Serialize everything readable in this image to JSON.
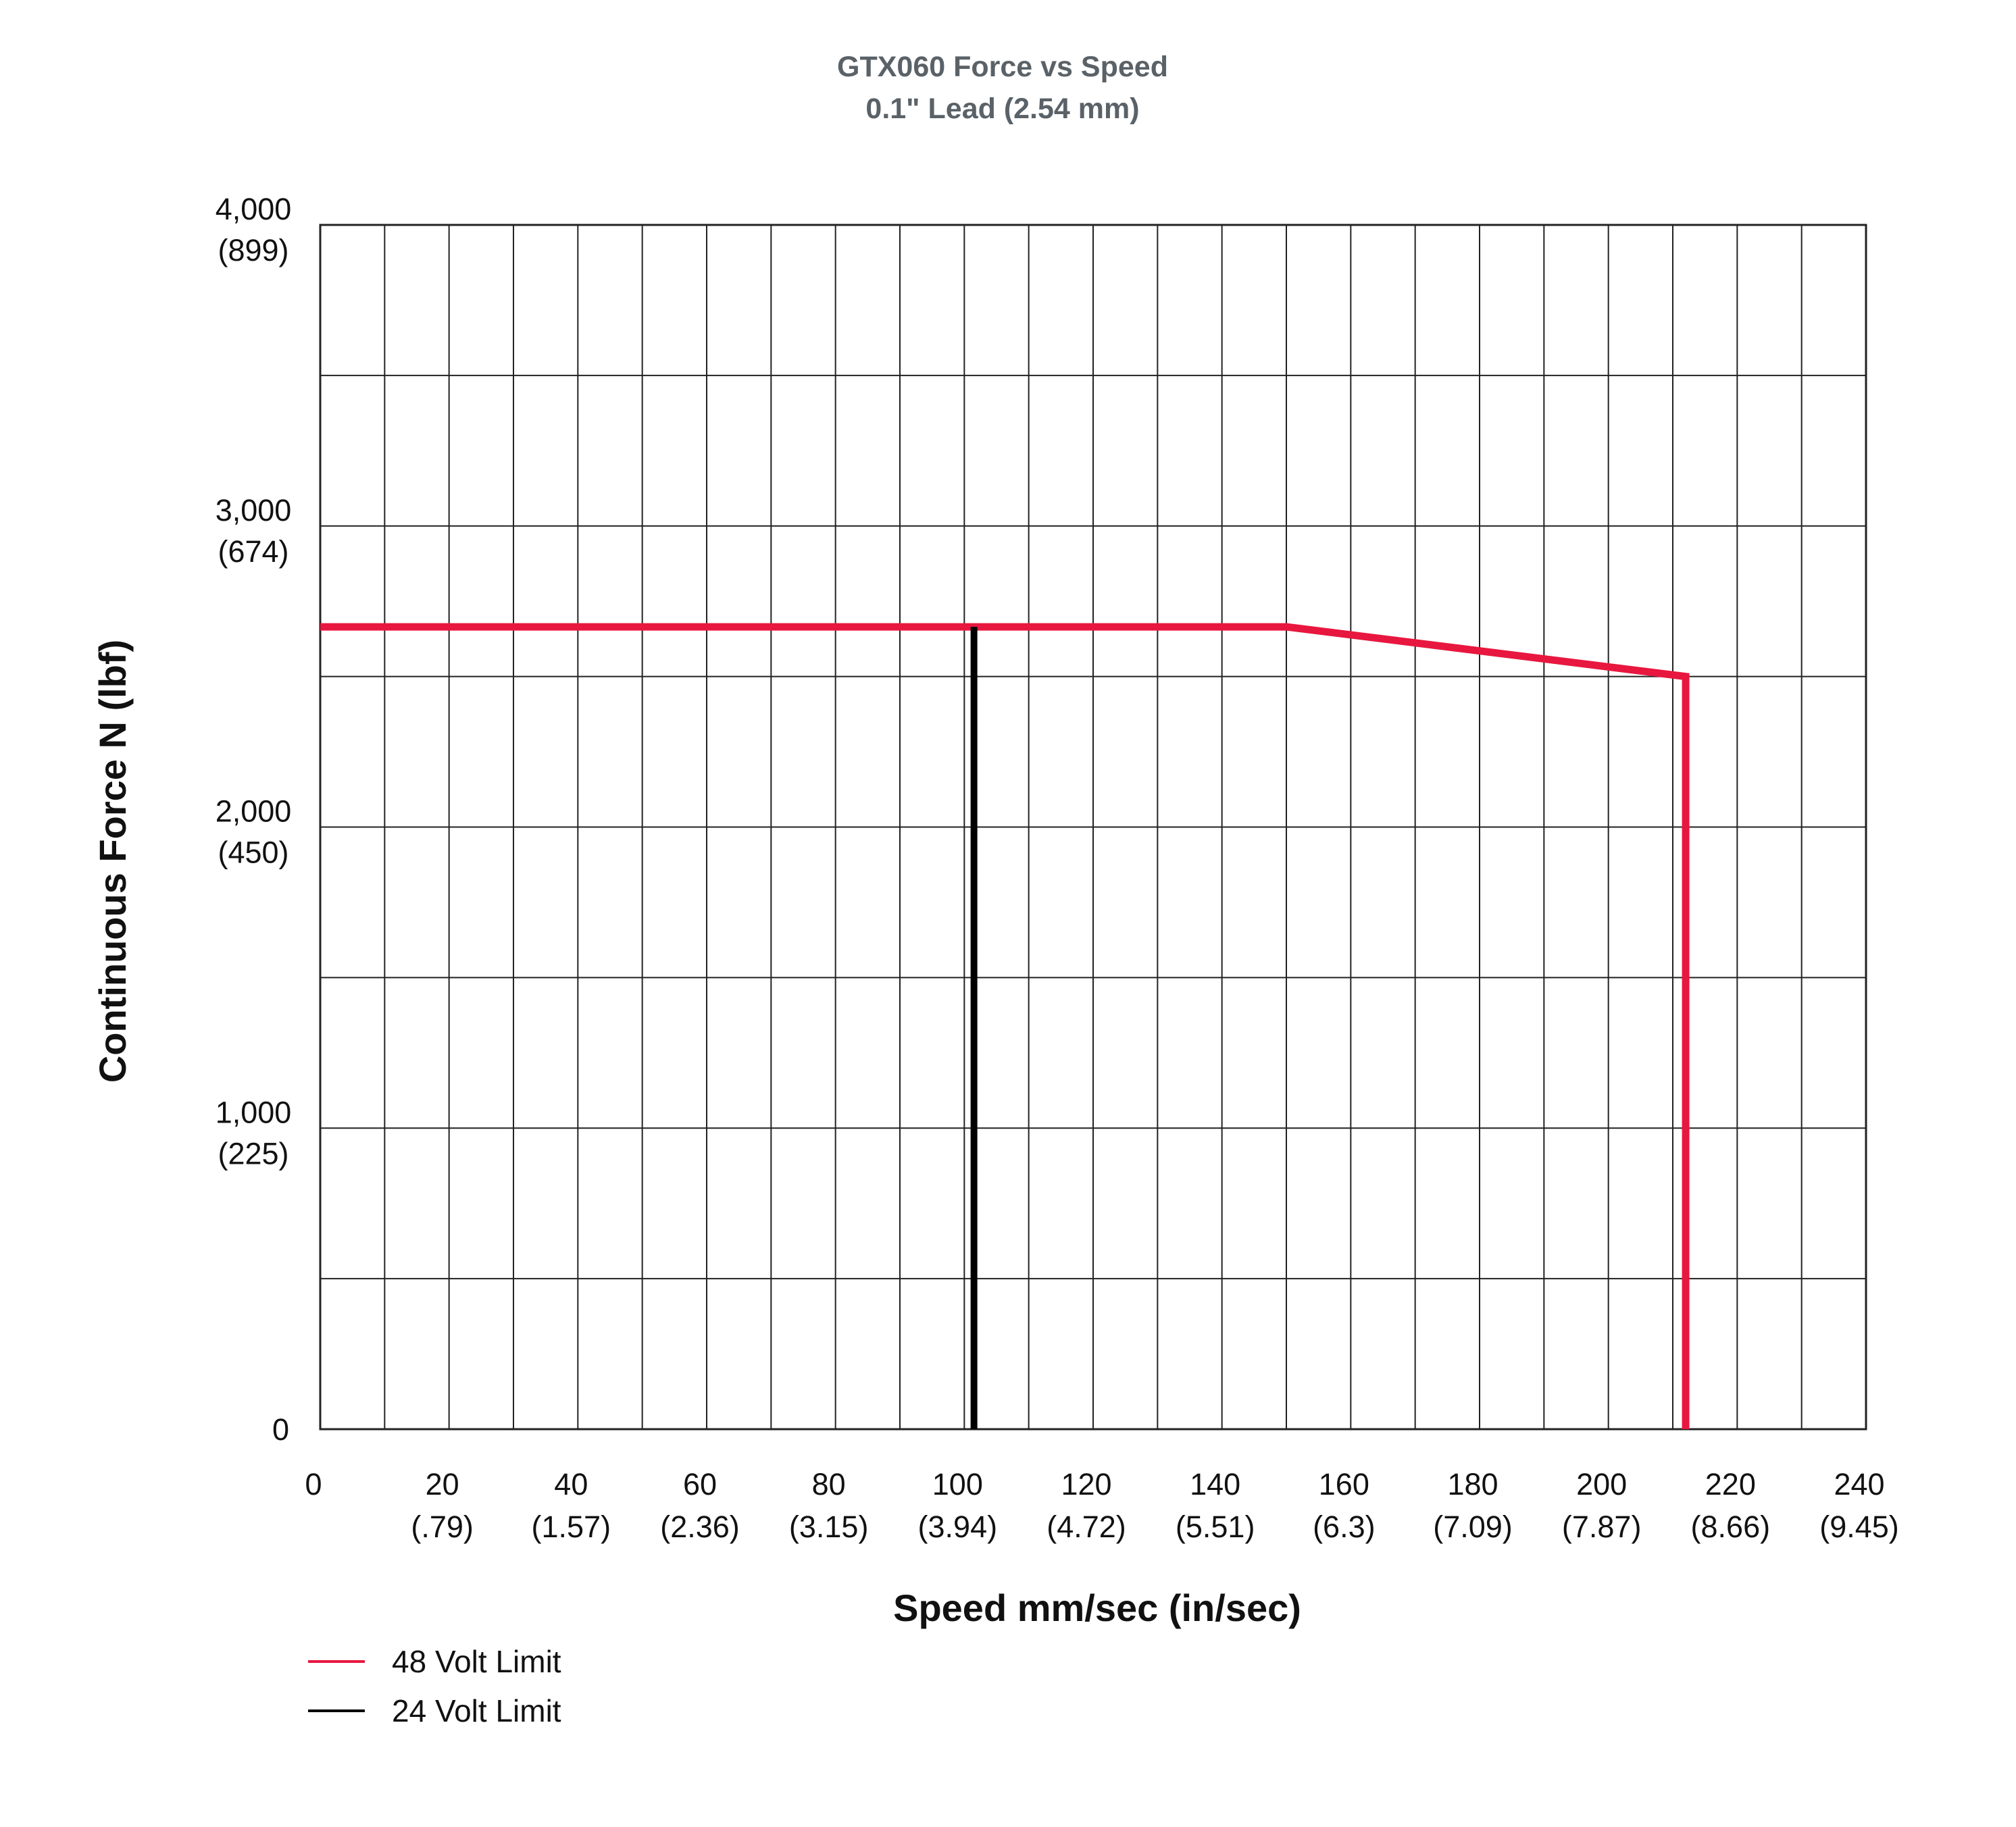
{
  "chart_data": {
    "type": "line",
    "title": "GTX060 Force vs Speed",
    "subtitle": "0.1\" Lead (2.54 mm)",
    "xlabel": "Speed mm/sec (in/sec)",
    "ylabel": "Continuous Force N (lbf)",
    "xlim": [
      0,
      240
    ],
    "ylim": [
      0,
      4000
    ],
    "grid": true,
    "x_ticks": [
      {
        "value": 0,
        "label": "0",
        "sublabel": ""
      },
      {
        "value": 20,
        "label": "20",
        "sublabel": "(.79)"
      },
      {
        "value": 40,
        "label": "40",
        "sublabel": "(1.57)"
      },
      {
        "value": 60,
        "label": "60",
        "sublabel": "(2.36)"
      },
      {
        "value": 80,
        "label": "80",
        "sublabel": "(3.15)"
      },
      {
        "value": 100,
        "label": "100",
        "sublabel": "(3.94)"
      },
      {
        "value": 120,
        "label": "120",
        "sublabel": "(4.72)"
      },
      {
        "value": 140,
        "label": "140",
        "sublabel": "(5.51)"
      },
      {
        "value": 160,
        "label": "160",
        "sublabel": "(6.3)"
      },
      {
        "value": 180,
        "label": "180",
        "sublabel": "(7.09)"
      },
      {
        "value": 200,
        "label": "200",
        "sublabel": "(7.87)"
      },
      {
        "value": 220,
        "label": "220",
        "sublabel": "(8.66)"
      },
      {
        "value": 240,
        "label": "240",
        "sublabel": "(9.45)"
      }
    ],
    "y_ticks": [
      {
        "value": 0,
        "label": "0",
        "sublabel": ""
      },
      {
        "value": 1000,
        "label": "1,000",
        "sublabel": "(225)"
      },
      {
        "value": 2000,
        "label": "2,000",
        "sublabel": "(450)"
      },
      {
        "value": 3000,
        "label": "3,000",
        "sublabel": "(674)"
      },
      {
        "value": 4000,
        "label": "4,000",
        "sublabel": "(899)"
      }
    ],
    "x_grid_step": 10,
    "y_grid_step": 500,
    "series": [
      {
        "name": "48 Volt Limit",
        "color": "#e8173f",
        "points": [
          [
            0,
            2665
          ],
          [
            150,
            2665
          ],
          [
            212,
            2500
          ],
          [
            212,
            0
          ]
        ]
      },
      {
        "name": "24 Volt Limit",
        "color": "#000000",
        "points": [
          [
            101.5,
            2665
          ],
          [
            101.5,
            0
          ]
        ]
      }
    ],
    "legend_position": "bottom-left"
  }
}
